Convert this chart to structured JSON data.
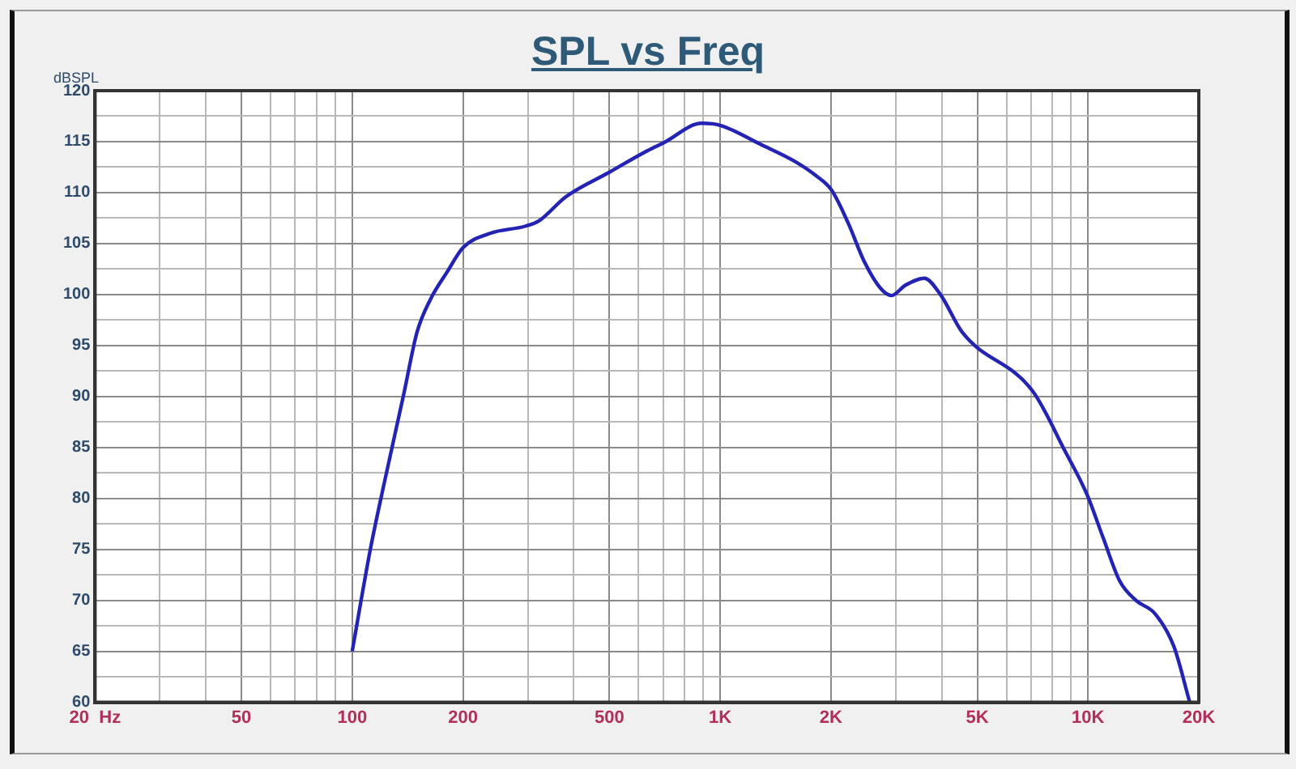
{
  "chart_data": {
    "type": "line",
    "title": "SPL vs Freq",
    "ylabel": "dBSPL",
    "log": "x",
    "grid": true,
    "legend": false,
    "marker": "none",
    "line_style": "solid",
    "xlim": [
      20,
      20000
    ],
    "ylim": [
      60,
      120
    ],
    "xticks": [
      {
        "value": 20,
        "label": "20  Hz"
      },
      {
        "value": 30,
        "label": null
      },
      {
        "value": 40,
        "label": null
      },
      50,
      {
        "value": 60,
        "label": null
      },
      {
        "value": 70,
        "label": null
      },
      {
        "value": 80,
        "label": null
      },
      {
        "value": 90,
        "label": null
      },
      100,
      200,
      {
        "value": 300,
        "label": null
      },
      {
        "value": 400,
        "label": null
      },
      500,
      {
        "value": 600,
        "label": null
      },
      {
        "value": 700,
        "label": null
      },
      {
        "value": 800,
        "label": null
      },
      {
        "value": 900,
        "label": null
      },
      {
        "value": 1000,
        "label": "1K"
      },
      {
        "value": 2000,
        "label": "2K"
      },
      {
        "value": 3000,
        "label": null
      },
      {
        "value": 4000,
        "label": null
      },
      {
        "value": 5000,
        "label": "5K"
      },
      {
        "value": 6000,
        "label": null
      },
      {
        "value": 7000,
        "label": null
      },
      {
        "value": 8000,
        "label": null
      },
      {
        "value": 9000,
        "label": null
      },
      {
        "value": 10000,
        "label": "10K"
      },
      {
        "value": 20000,
        "label": "20K"
      }
    ],
    "yticks": [
      60,
      {
        "value": 62.5,
        "label": null
      },
      65,
      {
        "value": 67.5,
        "label": null
      },
      70,
      {
        "value": 72.5,
        "label": null
      },
      75,
      {
        "value": 77.5,
        "label": null
      },
      80,
      {
        "value": 82.5,
        "label": null
      },
      85,
      {
        "value": 87.5,
        "label": null
      },
      90,
      {
        "value": 92.5,
        "label": null
      },
      95,
      {
        "value": 97.5,
        "label": null
      },
      100,
      {
        "value": 102.5,
        "label": null
      },
      105,
      {
        "value": 107.5,
        "label": null
      },
      110,
      {
        "value": 112.5,
        "label": null
      },
      115,
      {
        "value": 117.5,
        "label": null
      },
      120
    ],
    "x": [
      100,
      112,
      122,
      138,
      150,
      163,
      181,
      200,
      237,
      295,
      321,
      381,
      500,
      634,
      703,
      891,
      1000,
      1294,
      1589,
      1816,
      2013,
      2229,
      2467,
      2730,
      2925,
      3184,
      3588,
      3970,
      4550,
      7080,
      8670,
      9930,
      11000,
      12190,
      13490,
      15200,
      17100,
      18900
    ],
    "series": [
      {
        "color": "#2424b4",
        "values": [
          65,
          75,
          81.4,
          90.2,
          96.3,
          99.5,
          102.2,
          104.6,
          106,
          106.7,
          107.2,
          109.6,
          112,
          114.1,
          114.9,
          116.8,
          116.6,
          114.7,
          113.1,
          111.7,
          110.2,
          107,
          103.2,
          100.6,
          99.9,
          100.9,
          101.6,
          100,
          96.3,
          90.5,
          84.6,
          80.4,
          76.1,
          71.9,
          70,
          68.7,
          65.5,
          60
        ]
      }
    ]
  }
}
